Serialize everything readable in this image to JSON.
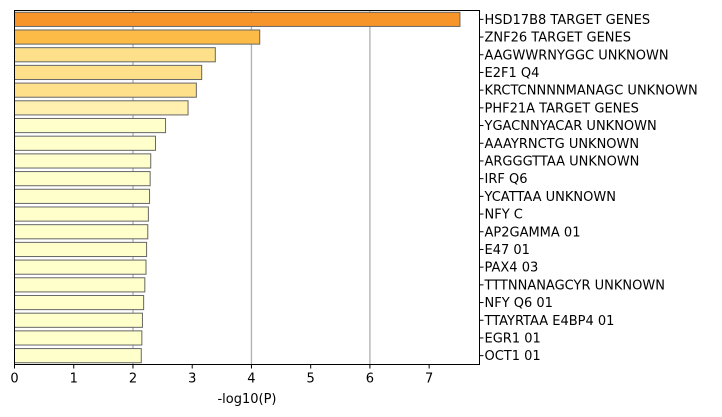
{
  "chart_data": {
    "type": "bar",
    "orientation": "horizontal",
    "xlabel": "-log10(P)",
    "ylabel": "",
    "title": "",
    "xlim": [
      0,
      7.85
    ],
    "xticks": [
      0,
      1,
      2,
      3,
      4,
      5,
      6,
      7
    ],
    "grid": {
      "x_lines_at": [
        2,
        4,
        6
      ],
      "color": "#b0b0b0"
    },
    "categories": [
      "HSD17B8 TARGET GENES",
      "ZNF26 TARGET GENES",
      "AAGWWRNYGGC UNKNOWN",
      "E2F1 Q4",
      "KRCTCNNNNMANAGC UNKNOWN",
      "PHF21A TARGET GENES",
      "YGACNNYACAR UNKNOWN",
      "AAAYRNCTG UNKNOWN",
      "ARGGGTTAA UNKNOWN",
      "IRF Q6",
      "YCATTAA UNKNOWN",
      "NFY C",
      "AP2GAMMA 01",
      "E47 01",
      "PAX4 03",
      "TTTNNANAGCYR UNKNOWN",
      "NFY Q6 01",
      "TTAYRTAA E4BP4 01",
      "EGR1 01",
      "OCT1 01"
    ],
    "values": [
      7.52,
      4.14,
      3.39,
      3.16,
      3.07,
      2.93,
      2.55,
      2.38,
      2.3,
      2.29,
      2.28,
      2.26,
      2.25,
      2.23,
      2.22,
      2.2,
      2.18,
      2.16,
      2.15,
      2.14
    ],
    "bar_colors": [
      "#f7952a",
      "#fcbb46",
      "#fee08a",
      "#fee08a",
      "#fee08a",
      "#fff0b0",
      "#ffffcc",
      "#ffffcc",
      "#ffffcc",
      "#ffffcc",
      "#ffffcc",
      "#ffffcc",
      "#ffffcc",
      "#ffffcc",
      "#ffffcc",
      "#ffffcc",
      "#ffffcc",
      "#ffffcc",
      "#ffffcc",
      "#ffffcc"
    ],
    "bar_edge_color": "#666666"
  }
}
